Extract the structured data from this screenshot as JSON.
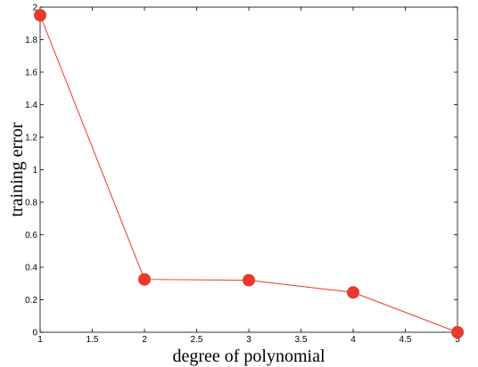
{
  "chart_data": {
    "type": "line",
    "xlabel": "degree of polynomial",
    "ylabel": "training error",
    "xlim": [
      1,
      5
    ],
    "ylim": [
      0,
      2
    ],
    "xticks": [
      "1",
      "1.5",
      "2",
      "2.5",
      "3",
      "3.5",
      "4",
      "4.5",
      "5"
    ],
    "yticks": [
      "0",
      "0.2",
      "0.4",
      "0.6",
      "0.8",
      "1",
      "1.2",
      "1.4",
      "1.6",
      "1.8",
      "2"
    ],
    "grid": false,
    "series": [
      {
        "x": [
          1,
          2,
          3,
          4,
          5
        ],
        "y": [
          1.95,
          0.325,
          0.32,
          0.245,
          0.0
        ],
        "color": "#e8392a"
      }
    ]
  }
}
